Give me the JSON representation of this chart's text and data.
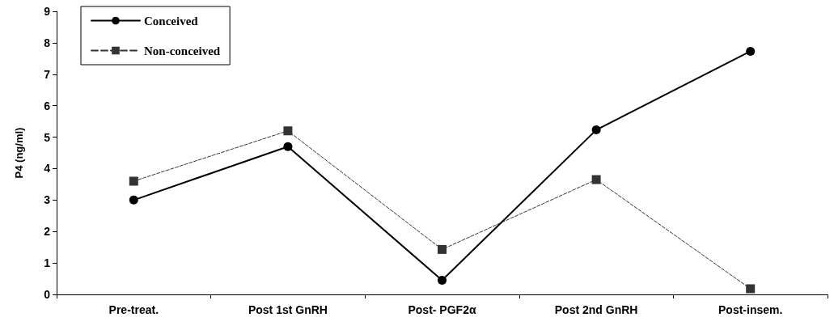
{
  "chart_data": {
    "type": "line",
    "ylabel": "P4 (ng/ml)",
    "categories": [
      "Pre-treat.",
      "Post 1st GnRH",
      "Post- PGF2α",
      "Post 2nd GnRH",
      "Post-insem."
    ],
    "series": [
      {
        "name": "Conceived",
        "color": "#000000",
        "marker": "circle",
        "line_style": "solid",
        "values": [
          3.0,
          4.7,
          0.45,
          5.23,
          7.73
        ]
      },
      {
        "name": "Non-conceived",
        "color": "#333333",
        "marker": "square",
        "line_style": "dashed",
        "values": [
          3.6,
          5.2,
          1.43,
          3.65,
          0.18
        ]
      }
    ],
    "ylim": [
      0,
      9
    ],
    "yticks": [
      0,
      1,
      2,
      3,
      4,
      5,
      6,
      7,
      8,
      9
    ],
    "grid": false,
    "legend": "top left"
  }
}
